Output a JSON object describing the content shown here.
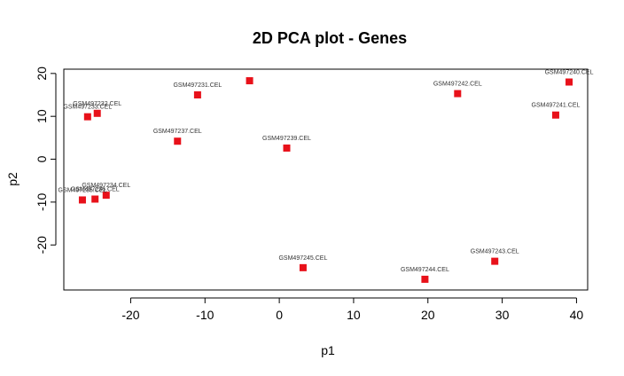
{
  "chart_data": {
    "type": "scatter",
    "title": "2D PCA plot - Genes",
    "xlabel": "p1",
    "ylabel": "p2",
    "xlim": [
      -29,
      41.5
    ],
    "ylim": [
      -30.5,
      21
    ],
    "xticks": [
      -20,
      -10,
      0,
      10,
      20,
      30,
      40
    ],
    "yticks": [
      -20,
      -10,
      0,
      10,
      20
    ],
    "grid": false,
    "legend": "none",
    "marker_color": "#e8111a",
    "marker": "square",
    "points": [
      {
        "label": "GSM497231.CEL",
        "x": -11.0,
        "y": 15.0
      },
      {
        "label": "",
        "x": -4.0,
        "y": 18.3
      },
      {
        "label": "GSM497232.CEL",
        "x": -24.5,
        "y": 10.7
      },
      {
        "label": "GSM497233.CEL",
        "x": -25.8,
        "y": 9.9
      },
      {
        "label": "GSM497237.CEL",
        "x": -13.7,
        "y": 4.2
      },
      {
        "label": "GSM497239.CEL",
        "x": 1.0,
        "y": 2.6
      },
      {
        "label": "GSM497242.CEL",
        "x": 24.0,
        "y": 15.3
      },
      {
        "label": "GSM497240.CEL",
        "x": 39.0,
        "y": 18.0
      },
      {
        "label": "GSM497241.CEL",
        "x": 37.2,
        "y": 10.3
      },
      {
        "label": "GSM497234.CEL",
        "x": -23.3,
        "y": -8.4
      },
      {
        "label": "GSM497235.CEL",
        "x": -26.5,
        "y": -9.5
      },
      {
        "label": "GSM497236.CEL",
        "x": -24.8,
        "y": -9.3
      },
      {
        "label": "GSM497245.CEL",
        "x": 3.2,
        "y": -25.3
      },
      {
        "label": "GSM497244.CEL",
        "x": 19.6,
        "y": -28.0
      },
      {
        "label": "GSM497243.CEL",
        "x": 29.0,
        "y": -23.8
      }
    ]
  }
}
